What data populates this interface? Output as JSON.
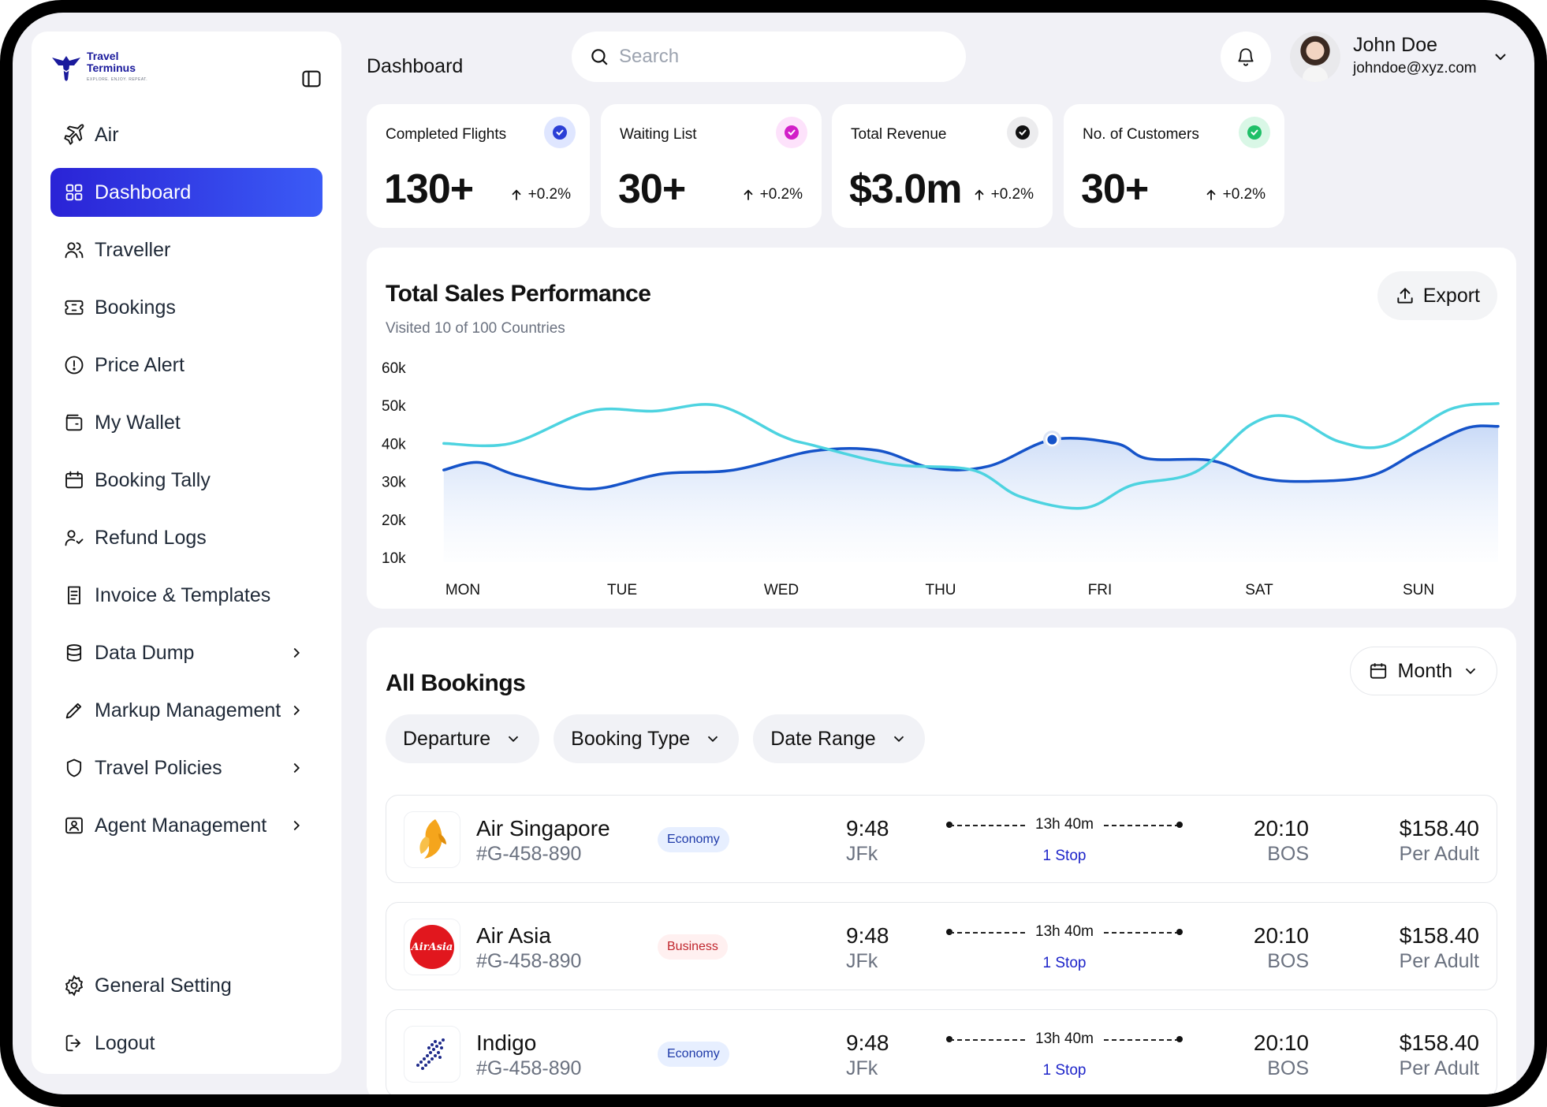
{
  "brand": {
    "line1": "Travel",
    "line2": "Terminus",
    "tagline": "EXPLORE. ENJOY. REPEAT."
  },
  "sidebar": {
    "section": "Air",
    "items": [
      {
        "label": "Dashboard",
        "icon": "grid-icon",
        "active": true,
        "chevron": false
      },
      {
        "label": "Traveller",
        "icon": "users-icon",
        "chevron": false
      },
      {
        "label": "Bookings",
        "icon": "ticket-icon",
        "chevron": false
      },
      {
        "label": "Price Alert",
        "icon": "alert-circle-icon",
        "chevron": false
      },
      {
        "label": "My Wallet",
        "icon": "wallet-icon",
        "chevron": false
      },
      {
        "label": "Booking Tally",
        "icon": "calendar-icon",
        "chevron": false
      },
      {
        "label": "Refund Logs",
        "icon": "user-refund-icon",
        "chevron": false
      },
      {
        "label": "Invoice & Templates",
        "icon": "invoice-icon",
        "chevron": false
      },
      {
        "label": "Data Dump",
        "icon": "database-icon",
        "chevron": true
      },
      {
        "label": "Markup Management",
        "icon": "pencil-icon",
        "chevron": true
      },
      {
        "label": "Travel Policies",
        "icon": "shield-icon",
        "chevron": true
      },
      {
        "label": "Agent Management",
        "icon": "id-card-icon",
        "chevron": true
      }
    ],
    "bottom": [
      {
        "label": "General Setting",
        "icon": "gear-icon"
      },
      {
        "label": "Logout",
        "icon": "logout-icon"
      }
    ]
  },
  "header": {
    "title": "Dashboard",
    "search_placeholder": "Search",
    "user_name": "John Doe",
    "user_email": "johndoe@xyz.com"
  },
  "stats": [
    {
      "label": "Completed Flights",
      "value": "130+",
      "change": "+0.2%",
      "badge_bg": "#dfe6ff",
      "badge_fg": "#2b3fd6"
    },
    {
      "label": "Waiting List",
      "value": "30+",
      "change": "+0.2%",
      "badge_bg": "#fde2fb",
      "badge_fg": "#d21fc8"
    },
    {
      "label": "Total Revenue",
      "value": "$3.0m",
      "change": "+0.2%",
      "badge_bg": "#ececee",
      "badge_fg": "#111111"
    },
    {
      "label": "No. of Customers",
      "value": "30+",
      "change": "+0.2%",
      "badge_bg": "#d9f7e6",
      "badge_fg": "#1fbf68"
    }
  ],
  "sales": {
    "title": "Total Sales Performance",
    "subtitle": "Visited 10 of 100 Countries",
    "export_label": "Export"
  },
  "chart_data": {
    "type": "line",
    "categories": [
      "MON",
      "TUE",
      "WED",
      "THU",
      "FRI",
      "SAT",
      "SUN"
    ],
    "y_ticks": [
      "60k",
      "50k",
      "40k",
      "30k",
      "20k",
      "10k"
    ],
    "ylim": [
      10000,
      60000
    ],
    "grid": false,
    "x_span": [
      -0.12,
      6.5
    ],
    "series": [
      {
        "color": "#1553c9",
        "area": true,
        "points": [
          [
            -0.12,
            33000
          ],
          [
            0.1,
            35000
          ],
          [
            0.35,
            31500
          ],
          [
            0.8,
            28000
          ],
          [
            1.25,
            32000
          ],
          [
            1.7,
            33000
          ],
          [
            2.2,
            38000
          ],
          [
            2.6,
            38200
          ],
          [
            2.95,
            33500
          ],
          [
            3.3,
            34000
          ],
          [
            3.7,
            41000
          ],
          [
            4.1,
            40000
          ],
          [
            4.3,
            36000
          ],
          [
            4.7,
            35500
          ],
          [
            5.0,
            31000
          ],
          [
            5.3,
            30000
          ],
          [
            5.7,
            31500
          ],
          [
            6.0,
            38000
          ],
          [
            6.3,
            44000
          ],
          [
            6.5,
            44500
          ]
        ]
      },
      {
        "color": "#4dd3e0",
        "area": false,
        "points": [
          [
            -0.12,
            40000
          ],
          [
            0.3,
            40000
          ],
          [
            0.8,
            48500
          ],
          [
            1.2,
            48500
          ],
          [
            1.6,
            50000
          ],
          [
            2.0,
            42000
          ],
          [
            2.2,
            39500
          ],
          [
            2.7,
            34500
          ],
          [
            3.2,
            33000
          ],
          [
            3.5,
            26000
          ],
          [
            3.9,
            23000
          ],
          [
            4.2,
            29000
          ],
          [
            4.6,
            32500
          ],
          [
            4.95,
            45000
          ],
          [
            5.2,
            47000
          ],
          [
            5.5,
            40500
          ],
          [
            5.8,
            39500
          ],
          [
            6.2,
            49000
          ],
          [
            6.5,
            50500
          ]
        ]
      }
    ],
    "highlight": {
      "x": 3.7,
      "y": 41000
    }
  },
  "bookings": {
    "title": "All Bookings",
    "period_label": "Month",
    "filters": [
      "Departure",
      "Booking Type",
      "Date Range"
    ],
    "rows": [
      {
        "airline": "Air Singapore",
        "code": "#G-458-890",
        "class": "Economy",
        "class_type": "economy",
        "dep_time": "9:48",
        "dep": "JFk",
        "duration": "13h 40m",
        "stops": "1 Stop",
        "arr_time": "20:10",
        "arr": "BOS",
        "price": "$158.40",
        "per": "Per Adult",
        "logo": "singapore-bird-icon"
      },
      {
        "airline": "Air Asia",
        "code": "#G-458-890",
        "class": "Business",
        "class_type": "business",
        "dep_time": "9:48",
        "dep": "JFk",
        "duration": "13h 40m",
        "stops": "1 Stop",
        "arr_time": "20:10",
        "arr": "BOS",
        "price": "$158.40",
        "per": "Per Adult",
        "logo": "airasia-icon",
        "logo_text": "AirAsia"
      },
      {
        "airline": "Indigo",
        "code": "#G-458-890",
        "class": "Economy",
        "class_type": "economy",
        "dep_time": "9:48",
        "dep": "JFk",
        "duration": "13h 40m",
        "stops": "1 Stop",
        "arr_time": "20:10",
        "arr": "BOS",
        "price": "$158.40",
        "per": "Per Adult",
        "logo": "indigo-plane-icon"
      }
    ]
  },
  "colors": {
    "accent": "#2a23d6",
    "accent_end": "#3b5bf6",
    "page_bg": "#f1f1f6",
    "stop_link": "#1d24c9"
  }
}
